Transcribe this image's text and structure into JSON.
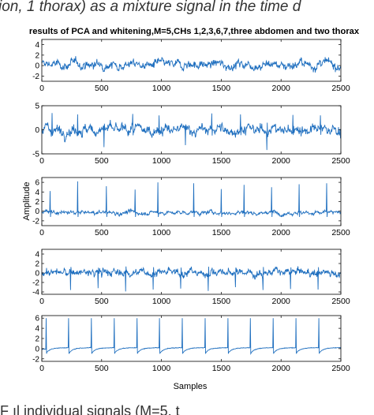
{
  "header_text": "ion, 1 thorax) as a mixture signal in the time d",
  "footer_text": "F                     ıl individual signals (M=5, t",
  "chart_data": {
    "type": "line",
    "title": "results of PCA and whitening,M=5,CHs 1,2,3,6,7,three abdomen and two thorax",
    "xlabel": "Samples",
    "ylabel": "Amplitude",
    "xlim": [
      0,
      2500
    ],
    "xticks": [
      0,
      500,
      1000,
      1500,
      2000,
      2500
    ],
    "grid": false,
    "line_color": "#1f6fbf",
    "panels": [
      {
        "ylim": [
          -3,
          5
        ],
        "yticks": [
          -2,
          0,
          2,
          4
        ],
        "kind": "noise",
        "noise": 0.9,
        "base": 0.2,
        "spikes": []
      },
      {
        "ylim": [
          -5,
          5
        ],
        "yticks": [
          -5,
          0,
          5
        ],
        "kind": "noise",
        "noise": 1.2,
        "base": 0,
        "spikes": [
          {
            "x": 85,
            "y": 3.5
          },
          {
            "x": 300,
            "y": 3.2
          },
          {
            "x": 520,
            "y": -3.6
          },
          {
            "x": 760,
            "y": 3.3
          },
          {
            "x": 980,
            "y": 3.0
          },
          {
            "x": 1200,
            "y": -3.2
          },
          {
            "x": 1420,
            "y": 3.4
          },
          {
            "x": 1660,
            "y": 3.2
          },
          {
            "x": 1880,
            "y": -4.2
          },
          {
            "x": 2100,
            "y": 3.1
          },
          {
            "x": 2330,
            "y": 3.0
          }
        ]
      },
      {
        "ylim": [
          -3,
          7
        ],
        "yticks": [
          -2,
          0,
          2,
          4,
          6
        ],
        "kind": "ecg",
        "noise": 0.45,
        "base": -0.3,
        "spikes": [
          {
            "x": 70,
            "y": 4.2
          },
          {
            "x": 300,
            "y": 6.2
          },
          {
            "x": 540,
            "y": 5.2
          },
          {
            "x": 780,
            "y": 4.5
          },
          {
            "x": 970,
            "y": 6.0
          },
          {
            "x": 1270,
            "y": 5.8
          },
          {
            "x": 1500,
            "y": 4.6
          },
          {
            "x": 1690,
            "y": 5.5
          },
          {
            "x": 1920,
            "y": 5.0
          },
          {
            "x": 2150,
            "y": 5.6
          },
          {
            "x": 2380,
            "y": 5.8
          }
        ]
      },
      {
        "ylim": [
          -4.5,
          5
        ],
        "yticks": [
          -4,
          -2,
          0,
          2,
          4
        ],
        "kind": "noise",
        "noise": 0.9,
        "base": 0.1,
        "spikes": [
          {
            "x": 240,
            "y": -3.6
          },
          {
            "x": 470,
            "y": -3.2
          },
          {
            "x": 700,
            "y": -3.9
          },
          {
            "x": 930,
            "y": -3.5
          },
          {
            "x": 1160,
            "y": -3.3
          },
          {
            "x": 1390,
            "y": -3.8
          },
          {
            "x": 1620,
            "y": -3.0
          },
          {
            "x": 1850,
            "y": -3.6
          },
          {
            "x": 2080,
            "y": -3.4
          },
          {
            "x": 2310,
            "y": -3.5
          }
        ]
      },
      {
        "ylim": [
          -2.5,
          6.5
        ],
        "yticks": [
          -2,
          0,
          2,
          4,
          6
        ],
        "kind": "ecg_clean",
        "noise": 0.06,
        "base": 0,
        "spikes": [
          {
            "x": 35,
            "y": 6.0
          },
          {
            "x": 225,
            "y": 6.0
          },
          {
            "x": 415,
            "y": 6.0
          },
          {
            "x": 605,
            "y": 6.0
          },
          {
            "x": 795,
            "y": 6.0
          },
          {
            "x": 985,
            "y": 6.0
          },
          {
            "x": 1175,
            "y": 6.0
          },
          {
            "x": 1365,
            "y": 6.0
          },
          {
            "x": 1555,
            "y": 6.0
          },
          {
            "x": 1745,
            "y": 6.0
          },
          {
            "x": 1935,
            "y": 6.0
          },
          {
            "x": 2125,
            "y": 6.0
          },
          {
            "x": 2315,
            "y": 6.0
          }
        ]
      }
    ]
  }
}
